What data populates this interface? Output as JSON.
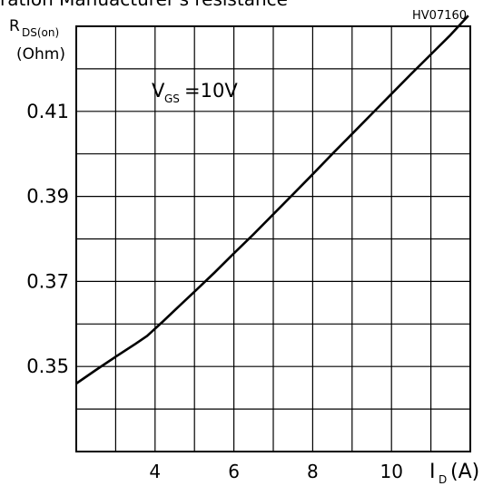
{
  "page_title_fragment": "ration Manuacturer's resistance",
  "chart_data": {
    "type": "line",
    "figure_code": "HV07160",
    "ylabel": {
      "main": "R",
      "sub": "DS(on)",
      "unit": "(Ohm)"
    },
    "xlabel": {
      "main": "I",
      "sub": "D",
      "unit": "(A)"
    },
    "annotation": {
      "main": "V",
      "sub": "GS",
      "text": "=10V"
    },
    "xlim": [
      2,
      12
    ],
    "ylim": [
      0.33,
      0.43
    ],
    "x_ticks": [
      4,
      6,
      8,
      10
    ],
    "x_tick_labels": [
      "4",
      "6",
      "8",
      "10"
    ],
    "y_ticks": [
      0.35,
      0.37,
      0.39,
      0.41
    ],
    "y_tick_labels": [
      "0.35",
      "0.37",
      "0.39",
      "0.41"
    ],
    "grid": true,
    "series": [
      {
        "x": [
          2,
          2.5,
          3,
          3.5,
          3.8,
          4.2,
          4.6,
          5.0,
          5.5,
          6.0,
          6.5,
          7.0,
          7.5,
          8.0,
          8.5,
          9.0,
          9.5,
          10.0,
          10.5,
          11.0,
          11.5,
          11.95
        ],
        "y": [
          0.346,
          0.3492,
          0.3523,
          0.3553,
          0.3572,
          0.3606,
          0.3641,
          0.3676,
          0.372,
          0.3766,
          0.3811,
          0.3858,
          0.3905,
          0.3952,
          0.4,
          0.4047,
          0.4094,
          0.4141,
          0.4188,
          0.4234,
          0.428,
          0.4325
        ]
      }
    ]
  }
}
